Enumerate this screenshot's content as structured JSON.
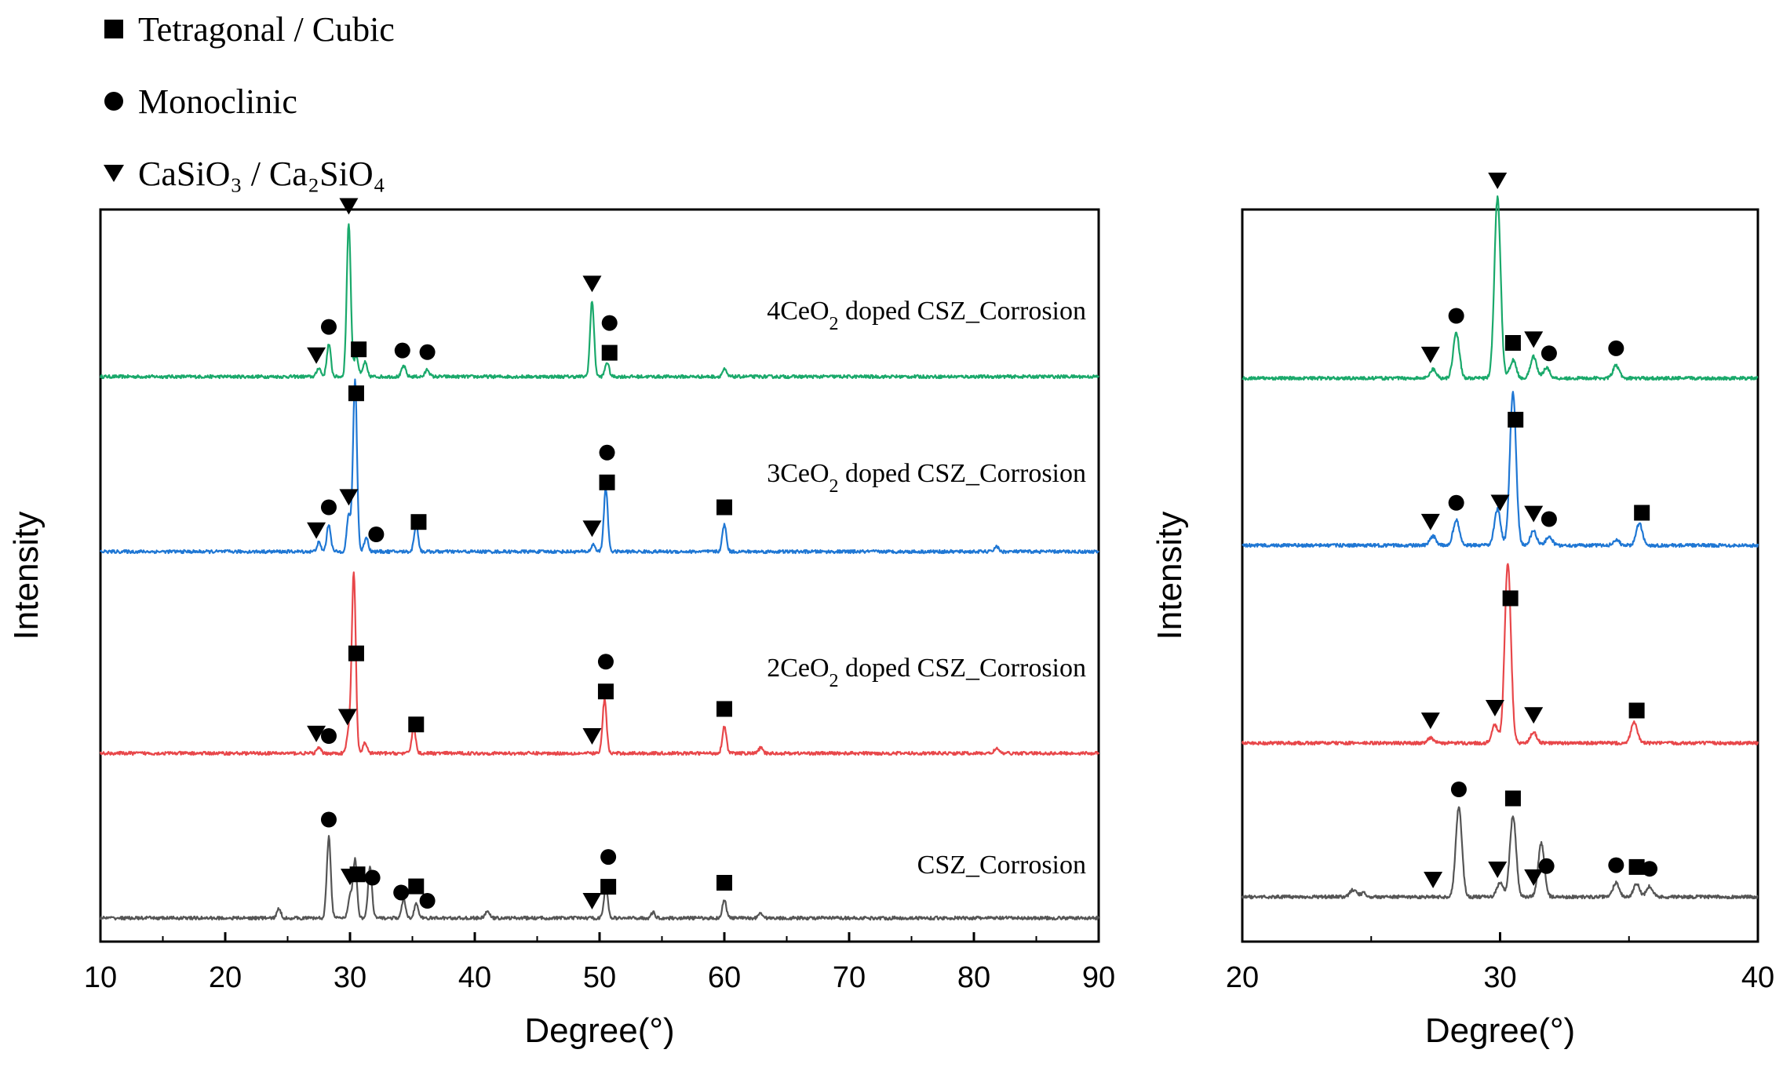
{
  "legend": {
    "tetragonal": {
      "label": "Tetragonal / Cubic",
      "icon": "square-marker-icon"
    },
    "monoclinic": {
      "label": "Monoclinic",
      "icon": "circle-marker-icon"
    },
    "casio": {
      "label": "CaSiO₃ / Ca₂SiO₄",
      "icon": "triangle-down-marker-icon"
    }
  },
  "colors": {
    "green": "#1aa96b",
    "blue": "#1f77d4",
    "red": "#e8474a",
    "gray": "#555555"
  },
  "chart_data": [
    {
      "type": "line",
      "title": "",
      "xlabel": "Degree(°)",
      "ylabel": "Intensity",
      "xlim": [
        10,
        90
      ],
      "xticks": [
        10,
        20,
        30,
        40,
        50,
        60,
        70,
        80,
        90
      ],
      "series": [
        {
          "name": "4CeO2 doped CSZ_Corrosion",
          "label_main": "4CeO",
          "label_sub": "2",
          "label_rest": " doped CSZ_Corrosion",
          "color": "green",
          "peaks": [
            {
              "x": 27.5,
              "h": 0.05
            },
            {
              "x": 28.3,
              "h": 0.18
            },
            {
              "x": 29.9,
              "h": 0.85
            },
            {
              "x": 30.5,
              "h": 0.12
            },
            {
              "x": 31.2,
              "h": 0.08
            },
            {
              "x": 34.3,
              "h": 0.06
            },
            {
              "x": 36.2,
              "h": 0.04
            },
            {
              "x": 49.4,
              "h": 0.42
            },
            {
              "x": 50.6,
              "h": 0.08
            },
            {
              "x": 60.0,
              "h": 0.04
            }
          ],
          "markers": [
            {
              "x": 27.3,
              "s": "tri"
            },
            {
              "x": 28.3,
              "s": "circle"
            },
            {
              "x": 29.9,
              "s": "tri"
            },
            {
              "x": 30.7,
              "s": "square"
            },
            {
              "x": 34.2,
              "s": "circle"
            },
            {
              "x": 36.2,
              "s": "circle"
            },
            {
              "x": 49.4,
              "s": "tri"
            },
            {
              "x": 50.8,
              "s": "square"
            },
            {
              "x": 50.8,
              "s": "circle"
            }
          ]
        },
        {
          "name": "3CeO2 doped CSZ_Corrosion",
          "label_main": "3CeO",
          "label_sub": "2",
          "label_rest": " doped CSZ_Corrosion",
          "color": "blue",
          "peaks": [
            {
              "x": 27.5,
              "h": 0.05
            },
            {
              "x": 28.3,
              "h": 0.15
            },
            {
              "x": 29.9,
              "h": 0.2
            },
            {
              "x": 30.4,
              "h": 0.95
            },
            {
              "x": 31.3,
              "h": 0.08
            },
            {
              "x": 35.3,
              "h": 0.15
            },
            {
              "x": 49.5,
              "h": 0.04
            },
            {
              "x": 50.5,
              "h": 0.35
            },
            {
              "x": 60.0,
              "h": 0.15
            },
            {
              "x": 81.8,
              "h": 0.03
            }
          ],
          "markers": [
            {
              "x": 27.3,
              "s": "tri"
            },
            {
              "x": 28.3,
              "s": "circle"
            },
            {
              "x": 29.9,
              "s": "tri"
            },
            {
              "x": 30.5,
              "s": "square"
            },
            {
              "x": 32.1,
              "s": "circle"
            },
            {
              "x": 35.5,
              "s": "square"
            },
            {
              "x": 49.4,
              "s": "tri"
            },
            {
              "x": 50.6,
              "s": "square"
            },
            {
              "x": 50.6,
              "s": "circle"
            },
            {
              "x": 60.0,
              "s": "square"
            }
          ]
        },
        {
          "name": "2CeO2 doped CSZ_Corrosion",
          "label_main": "2CeO",
          "label_sub": "2",
          "label_rest": " doped CSZ_Corrosion",
          "color": "red",
          "peaks": [
            {
              "x": 27.5,
              "h": 0.03
            },
            {
              "x": 29.9,
              "h": 0.12
            },
            {
              "x": 30.3,
              "h": 1.0
            },
            {
              "x": 31.2,
              "h": 0.06
            },
            {
              "x": 35.1,
              "h": 0.14
            },
            {
              "x": 50.4,
              "h": 0.3
            },
            {
              "x": 60.0,
              "h": 0.15
            },
            {
              "x": 62.9,
              "h": 0.03
            },
            {
              "x": 81.8,
              "h": 0.03
            }
          ],
          "markers": [
            {
              "x": 27.3,
              "s": "tri"
            },
            {
              "x": 28.3,
              "s": "circle"
            },
            {
              "x": 29.8,
              "s": "tri"
            },
            {
              "x": 30.5,
              "s": "square"
            },
            {
              "x": 35.3,
              "s": "square"
            },
            {
              "x": 49.4,
              "s": "tri"
            },
            {
              "x": 50.5,
              "s": "square"
            },
            {
              "x": 50.5,
              "s": "circle"
            },
            {
              "x": 60.0,
              "s": "square"
            }
          ]
        },
        {
          "name": "CSZ_Corrosion",
          "label_main": "CSZ_Corrosion",
          "label_sub": "",
          "label_rest": "",
          "color": "gray",
          "peaks": [
            {
              "x": 24.3,
              "h": 0.05
            },
            {
              "x": 28.3,
              "h": 0.45
            },
            {
              "x": 30.0,
              "h": 0.12
            },
            {
              "x": 30.4,
              "h": 0.32
            },
            {
              "x": 31.6,
              "h": 0.28
            },
            {
              "x": 34.3,
              "h": 0.1
            },
            {
              "x": 35.3,
              "h": 0.08
            },
            {
              "x": 41.0,
              "h": 0.04
            },
            {
              "x": 50.5,
              "h": 0.17
            },
            {
              "x": 54.3,
              "h": 0.03
            },
            {
              "x": 60.0,
              "h": 0.1
            },
            {
              "x": 62.9,
              "h": 0.03
            }
          ],
          "markers": [
            {
              "x": 28.3,
              "s": "circle"
            },
            {
              "x": 30.0,
              "s": "tri"
            },
            {
              "x": 30.6,
              "s": "square"
            },
            {
              "x": 31.8,
              "s": "circle"
            },
            {
              "x": 34.1,
              "s": "circle"
            },
            {
              "x": 35.3,
              "s": "square"
            },
            {
              "x": 36.2,
              "s": "circle"
            },
            {
              "x": 49.4,
              "s": "tri"
            },
            {
              "x": 50.7,
              "s": "square"
            },
            {
              "x": 50.7,
              "s": "circle"
            },
            {
              "x": 60.0,
              "s": "square"
            }
          ]
        }
      ]
    },
    {
      "type": "line",
      "title": "",
      "xlabel": "Degree(°)",
      "ylabel": "Intensity",
      "xlim": [
        20,
        40
      ],
      "xticks": [
        20,
        30,
        40
      ],
      "series": [
        {
          "name": "4CeO2 doped CSZ_Corrosion",
          "color": "green",
          "peaks": [
            {
              "x": 27.4,
              "h": 0.05
            },
            {
              "x": 28.3,
              "h": 0.25
            },
            {
              "x": 29.9,
              "h": 1.0
            },
            {
              "x": 30.5,
              "h": 0.1
            },
            {
              "x": 31.3,
              "h": 0.12
            },
            {
              "x": 31.8,
              "h": 0.06
            },
            {
              "x": 34.5,
              "h": 0.07
            }
          ],
          "markers": [
            {
              "x": 27.3,
              "s": "tri"
            },
            {
              "x": 28.3,
              "s": "circle"
            },
            {
              "x": 29.9,
              "s": "tri"
            },
            {
              "x": 30.5,
              "s": "square"
            },
            {
              "x": 31.3,
              "s": "tri"
            },
            {
              "x": 31.9,
              "s": "circle"
            },
            {
              "x": 34.5,
              "s": "circle"
            }
          ]
        },
        {
          "name": "3CeO2 doped CSZ_Corrosion",
          "color": "blue",
          "peaks": [
            {
              "x": 27.4,
              "h": 0.05
            },
            {
              "x": 28.3,
              "h": 0.14
            },
            {
              "x": 29.9,
              "h": 0.2
            },
            {
              "x": 30.5,
              "h": 0.85
            },
            {
              "x": 31.3,
              "h": 0.08
            },
            {
              "x": 31.9,
              "h": 0.05
            },
            {
              "x": 34.5,
              "h": 0.03
            },
            {
              "x": 35.4,
              "h": 0.12
            }
          ],
          "markers": [
            {
              "x": 27.3,
              "s": "tri"
            },
            {
              "x": 28.3,
              "s": "circle"
            },
            {
              "x": 30.0,
              "s": "tri"
            },
            {
              "x": 30.6,
              "s": "square"
            },
            {
              "x": 31.3,
              "s": "tri"
            },
            {
              "x": 31.9,
              "s": "circle"
            },
            {
              "x": 35.5,
              "s": "square"
            }
          ]
        },
        {
          "name": "2CeO2 doped CSZ_Corrosion",
          "color": "red",
          "peaks": [
            {
              "x": 27.3,
              "h": 0.03
            },
            {
              "x": 29.8,
              "h": 0.1
            },
            {
              "x": 30.3,
              "h": 1.0
            },
            {
              "x": 31.3,
              "h": 0.06
            },
            {
              "x": 35.2,
              "h": 0.12
            }
          ],
          "markers": [
            {
              "x": 27.3,
              "s": "tri"
            },
            {
              "x": 29.8,
              "s": "tri"
            },
            {
              "x": 30.4,
              "s": "square"
            },
            {
              "x": 31.3,
              "s": "tri"
            },
            {
              "x": 35.3,
              "s": "square"
            }
          ]
        },
        {
          "name": "CSZ_Corrosion",
          "color": "gray",
          "peaks": [
            {
              "x": 24.3,
              "h": 0.04
            },
            {
              "x": 24.7,
              "h": 0.02
            },
            {
              "x": 28.4,
              "h": 0.5
            },
            {
              "x": 30.0,
              "h": 0.08
            },
            {
              "x": 30.5,
              "h": 0.45
            },
            {
              "x": 31.6,
              "h": 0.3
            },
            {
              "x": 34.5,
              "h": 0.08
            },
            {
              "x": 35.3,
              "h": 0.07
            },
            {
              "x": 35.8,
              "h": 0.06
            }
          ],
          "markers": [
            {
              "x": 27.4,
              "s": "tri"
            },
            {
              "x": 28.4,
              "s": "circle"
            },
            {
              "x": 29.9,
              "s": "tri"
            },
            {
              "x": 30.5,
              "s": "square"
            },
            {
              "x": 31.3,
              "s": "tri"
            },
            {
              "x": 31.8,
              "s": "circle"
            },
            {
              "x": 34.5,
              "s": "circle"
            },
            {
              "x": 35.3,
              "s": "square"
            },
            {
              "x": 35.8,
              "s": "circle"
            }
          ]
        }
      ]
    }
  ]
}
